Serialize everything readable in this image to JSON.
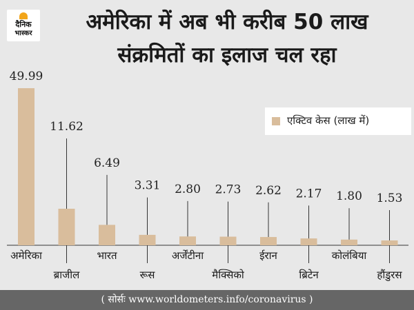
{
  "brand": {
    "line1": "दैनिक",
    "line2": "भास्कर"
  },
  "title_lines": [
    "अमेरिका में अब भी करीब 50 लाख",
    "संक्रमितों का इलाज चल रहा"
  ],
  "colors": {
    "bar": "#d9bd9c",
    "background": "#e8e8e8",
    "footer_bg": "#666666",
    "line": "#333333"
  },
  "chart_data": {
    "type": "bar",
    "categories": [
      "अमेरिका",
      "ब्राजील",
      "भारत",
      "रूस",
      "अर्जेंटीना",
      "मैक्सिको",
      "ईरान",
      "ब्रिटेन",
      "कोलंबिया",
      "हौंडुरस"
    ],
    "series": [
      {
        "name": "एक्टिव केस (लाख में)",
        "values": [
          49.99,
          11.62,
          6.49,
          3.31,
          2.8,
          2.73,
          2.62,
          2.17,
          1.8,
          1.53
        ]
      }
    ],
    "data_labels": [
      "49.99",
      "11.62",
      "6.49",
      "3.31",
      "2.80",
      "2.73",
      "2.62",
      "2.17",
      "1.80",
      "1.53"
    ],
    "legend_position": "right",
    "grid": false
  },
  "source": "( सोर्सः www.worldometers.info/coronavirus )"
}
